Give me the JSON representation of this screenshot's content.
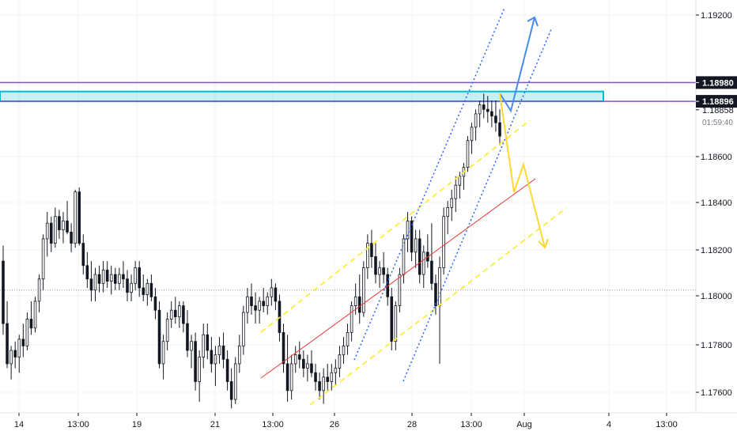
{
  "chart_data": {
    "type": "candlestick",
    "y_range": [
      1.175,
      1.1935
    ],
    "y_ticks": [
      "1.19200",
      "1.18600",
      "1.18400",
      "1.18200",
      "1.18000",
      "1.17800",
      "1.17600"
    ],
    "x_ticks": [
      "14",
      "13:00",
      "19",
      "21",
      "13:00",
      "26",
      "28",
      "13:00",
      "Aug",
      "4",
      "13:00"
    ],
    "price_labels": [
      {
        "text": "1.18980",
        "price": 1.1898,
        "style": "tag",
        "color": "#131722"
      },
      {
        "text": "1.18896",
        "price": 1.18896,
        "style": "tag",
        "color": "#131722"
      },
      {
        "text": "1.18858",
        "price": 1.18858,
        "style": "plain",
        "color": "#131722"
      }
    ],
    "countdown": "01:59:40",
    "reference_price": 1.1805,
    "horizontal_lines": [
      1.1898,
      1.18896
    ],
    "zone": {
      "top": 1.1894,
      "bottom": 1.18896
    },
    "candles": [
      [
        1.1818,
        1.1825,
        1.1785,
        1.179
      ],
      [
        1.179,
        1.18,
        1.177,
        1.1772
      ],
      [
        1.1772,
        1.178,
        1.1765,
        1.1778
      ],
      [
        1.1778,
        1.1782,
        1.177,
        1.1775
      ],
      [
        1.1775,
        1.1785,
        1.1768,
        1.1783
      ],
      [
        1.1783,
        1.179,
        1.1775,
        1.178
      ],
      [
        1.178,
        1.1795,
        1.1778,
        1.1792
      ],
      [
        1.1792,
        1.18,
        1.1785,
        1.1788
      ],
      [
        1.1788,
        1.1802,
        1.1786,
        1.18
      ],
      [
        1.18,
        1.1812,
        1.1795,
        1.181
      ],
      [
        1.181,
        1.183,
        1.1805,
        1.1828
      ],
      [
        1.1828,
        1.184,
        1.182,
        1.1835
      ],
      [
        1.1835,
        1.1838,
        1.1822,
        1.1826
      ],
      [
        1.1826,
        1.1842,
        1.1824,
        1.1838
      ],
      [
        1.1838,
        1.1841,
        1.1828,
        1.1832
      ],
      [
        1.1832,
        1.184,
        1.1826,
        1.1836
      ],
      [
        1.1836,
        1.1845,
        1.183,
        1.1831
      ],
      [
        1.1831,
        1.1835,
        1.1822,
        1.1826
      ],
      [
        1.1826,
        1.185,
        1.1824,
        1.1849
      ],
      [
        1.1849,
        1.1851,
        1.1825,
        1.1826
      ],
      [
        1.1826,
        1.183,
        1.1812,
        1.1816
      ],
      [
        1.1816,
        1.1822,
        1.1806,
        1.181
      ],
      [
        1.181,
        1.1818,
        1.18,
        1.1805
      ],
      [
        1.1805,
        1.1815,
        1.18,
        1.1812
      ],
      [
        1.1812,
        1.1816,
        1.1804,
        1.1808
      ],
      [
        1.1808,
        1.1818,
        1.1804,
        1.1814
      ],
      [
        1.1814,
        1.1818,
        1.1806,
        1.1809
      ],
      [
        1.1809,
        1.1816,
        1.1803,
        1.1812
      ],
      [
        1.1812,
        1.1815,
        1.1805,
        1.1808
      ],
      [
        1.1808,
        1.1815,
        1.1805,
        1.1812
      ],
      [
        1.1812,
        1.1818,
        1.1806,
        1.181
      ],
      [
        1.181,
        1.1814,
        1.18,
        1.1804
      ],
      [
        1.1804,
        1.1812,
        1.18,
        1.1808
      ],
      [
        1.1808,
        1.1818,
        1.1805,
        1.1815
      ],
      [
        1.1815,
        1.1818,
        1.1802,
        1.1806
      ],
      [
        1.1806,
        1.1812,
        1.18,
        1.1803
      ],
      [
        1.1803,
        1.181,
        1.1798,
        1.1808
      ],
      [
        1.1808,
        1.1812,
        1.18,
        1.1802
      ],
      [
        1.1802,
        1.1806,
        1.1792,
        1.1796
      ],
      [
        1.1796,
        1.18,
        1.177,
        1.1772
      ],
      [
        1.1772,
        1.1785,
        1.1765,
        1.1782
      ],
      [
        1.1782,
        1.1795,
        1.1778,
        1.1792
      ],
      [
        1.1792,
        1.18,
        1.1788,
        1.1796
      ],
      [
        1.1796,
        1.1802,
        1.179,
        1.1793
      ],
      [
        1.1793,
        1.18,
        1.1788,
        1.1798
      ],
      [
        1.1798,
        1.18,
        1.1786,
        1.179
      ],
      [
        1.179,
        1.1796,
        1.1775,
        1.1778
      ],
      [
        1.1778,
        1.1785,
        1.177,
        1.1782
      ],
      [
        1.1782,
        1.1786,
        1.176,
        1.1764
      ],
      [
        1.1764,
        1.1778,
        1.1755,
        1.1775
      ],
      [
        1.1775,
        1.179,
        1.177,
        1.1785
      ],
      [
        1.1785,
        1.179,
        1.1774,
        1.1778
      ],
      [
        1.1778,
        1.1784,
        1.1768,
        1.1772
      ],
      [
        1.1772,
        1.178,
        1.1762,
        1.1776
      ],
      [
        1.1776,
        1.1784,
        1.1772,
        1.178
      ],
      [
        1.178,
        1.1786,
        1.177,
        1.1774
      ],
      [
        1.1774,
        1.1778,
        1.176,
        1.1764
      ],
      [
        1.1764,
        1.177,
        1.1752,
        1.1756
      ],
      [
        1.1756,
        1.1775,
        1.1754,
        1.1772
      ],
      [
        1.1772,
        1.1785,
        1.1768,
        1.178
      ],
      [
        1.178,
        1.1798,
        1.1776,
        1.1795
      ],
      [
        1.1795,
        1.1806,
        1.179,
        1.1802
      ],
      [
        1.1802,
        1.1808,
        1.1794,
        1.1798
      ],
      [
        1.1798,
        1.1804,
        1.179,
        1.1796
      ],
      [
        1.1796,
        1.1802,
        1.179,
        1.18
      ],
      [
        1.18,
        1.1806,
        1.1795,
        1.1798
      ],
      [
        1.1798,
        1.1804,
        1.1794,
        1.1802
      ],
      [
        1.1802,
        1.181,
        1.1798,
        1.1806
      ],
      [
        1.1806,
        1.1808,
        1.1796,
        1.18
      ],
      [
        1.18,
        1.1803,
        1.1782,
        1.1786
      ],
      [
        1.1786,
        1.179,
        1.1768,
        1.1772
      ],
      [
        1.1772,
        1.1785,
        1.1755,
        1.176
      ],
      [
        1.176,
        1.1776,
        1.1756,
        1.1772
      ],
      [
        1.1772,
        1.178,
        1.1768,
        1.1776
      ],
      [
        1.1776,
        1.1782,
        1.177,
        1.1774
      ],
      [
        1.1774,
        1.1778,
        1.1766,
        1.177
      ],
      [
        1.177,
        1.1776,
        1.1764,
        1.1772
      ],
      [
        1.1772,
        1.1778,
        1.1766,
        1.1768
      ],
      [
        1.1768,
        1.1772,
        1.176,
        1.1764
      ],
      [
        1.1764,
        1.1768,
        1.1756,
        1.176
      ],
      [
        1.176,
        1.177,
        1.1754,
        1.1766
      ],
      [
        1.1766,
        1.1772,
        1.176,
        1.1764
      ],
      [
        1.1764,
        1.1772,
        1.176,
        1.1768
      ],
      [
        1.1768,
        1.1774,
        1.1762,
        1.177
      ],
      [
        1.177,
        1.178,
        1.1766,
        1.1776
      ],
      [
        1.1776,
        1.1784,
        1.1772,
        1.178
      ],
      [
        1.178,
        1.179,
        1.1776,
        1.1786
      ],
      [
        1.1786,
        1.18,
        1.1782,
        1.1798
      ],
      [
        1.1798,
        1.1808,
        1.1794,
        1.1802
      ],
      [
        1.1802,
        1.1812,
        1.179,
        1.1795
      ],
      [
        1.1795,
        1.1818,
        1.1793,
        1.1815
      ],
      [
        1.1815,
        1.183,
        1.181,
        1.1826
      ],
      [
        1.1826,
        1.1832,
        1.1815,
        1.182
      ],
      [
        1.182,
        1.1826,
        1.1808,
        1.1812
      ],
      [
        1.1812,
        1.1818,
        1.1806,
        1.1815
      ],
      [
        1.1815,
        1.1822,
        1.1808,
        1.1812
      ],
      [
        1.1812,
        1.1815,
        1.1798,
        1.1802
      ],
      [
        1.1802,
        1.1806,
        1.1778,
        1.1782
      ],
      [
        1.1782,
        1.18,
        1.1778,
        1.1798
      ],
      [
        1.1798,
        1.1815,
        1.1795,
        1.1812
      ],
      [
        1.1812,
        1.183,
        1.1808,
        1.1828
      ],
      [
        1.1828,
        1.184,
        1.1822,
        1.1836
      ],
      [
        1.1836,
        1.1838,
        1.1818,
        1.1822
      ],
      [
        1.1822,
        1.1832,
        1.1815,
        1.1828
      ],
      [
        1.1828,
        1.1832,
        1.1808,
        1.1812
      ],
      [
        1.1812,
        1.1825,
        1.1806,
        1.1822
      ],
      [
        1.1822,
        1.183,
        1.1815,
        1.1818
      ],
      [
        1.1818,
        1.1835,
        1.1805,
        1.1808
      ],
      [
        1.1808,
        1.1812,
        1.1794,
        1.1798
      ],
      [
        1.1798,
        1.182,
        1.1772,
        1.1815
      ],
      [
        1.1815,
        1.1842,
        1.1812,
        1.1838
      ],
      [
        1.1838,
        1.1845,
        1.183,
        1.1842
      ],
      [
        1.1842,
        1.185,
        1.1836,
        1.1846
      ],
      [
        1.1846,
        1.1856,
        1.184,
        1.1852
      ],
      [
        1.1852,
        1.1858,
        1.1846,
        1.1856
      ],
      [
        1.1856,
        1.1862,
        1.185,
        1.186
      ],
      [
        1.186,
        1.1874,
        1.1858,
        1.1872
      ],
      [
        1.1872,
        1.188,
        1.1866,
        1.1878
      ],
      [
        1.1878,
        1.1886,
        1.1872,
        1.1884
      ],
      [
        1.1884,
        1.189,
        1.1878,
        1.1888
      ],
      [
        1.1888,
        1.1893,
        1.1882,
        1.1886
      ],
      [
        1.1886,
        1.1892,
        1.188,
        1.1885
      ],
      [
        1.1885,
        1.189,
        1.1878,
        1.1883
      ],
      [
        1.1883,
        1.189,
        1.1876,
        1.188
      ],
      [
        1.188,
        1.1886,
        1.187,
        1.1874
      ]
    ]
  }
}
